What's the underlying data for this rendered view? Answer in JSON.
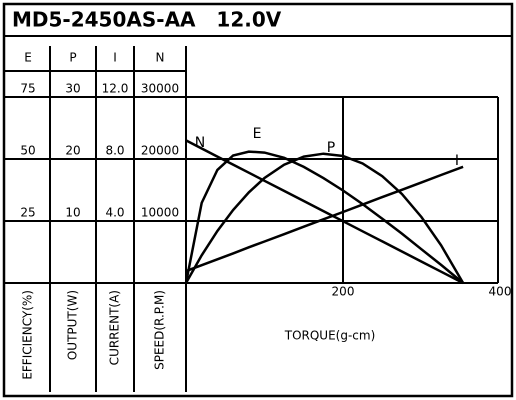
{
  "chart_data": {
    "type": "line",
    "title": "MD5-2450AS-AA   12.0V",
    "x": [
      0,
      20,
      40,
      60,
      80,
      100,
      125,
      150,
      175,
      200,
      225,
      250,
      275,
      300,
      325,
      353
    ],
    "xlim": [
      0,
      400
    ],
    "xticks": [
      200,
      400
    ],
    "xlabel": "TORQUE(g-cm)",
    "grid": true,
    "y_axes": [
      {
        "name": "E",
        "label": "EFFICIENCY(%)",
        "ylim": [
          0,
          75
        ],
        "yticks": [
          25,
          50,
          75
        ]
      },
      {
        "name": "P",
        "label": "OUTPUT(W)",
        "ylim": [
          0,
          30
        ],
        "yticks": [
          10,
          20,
          30
        ]
      },
      {
        "name": "I",
        "label": "CURRENT(A)",
        "ylim": [
          0,
          12
        ],
        "yticks": [
          {
            "value": 4,
            "label": "4.0"
          },
          {
            "value": 8,
            "label": "8.0"
          },
          {
            "value": 12,
            "label": "12.0"
          }
        ]
      },
      {
        "name": "N",
        "label": "SPEED(R.P.M)",
        "ylim": [
          0,
          30000
        ],
        "yticks": [
          10000,
          20000,
          30000
        ]
      }
    ],
    "series": [
      {
        "name": "N",
        "color": "#000000",
        "axis": 3,
        "values": [
          23000,
          21700,
          20390,
          19090,
          17790,
          16480,
          14860,
          13230,
          11600,
          9970,
          8340,
          6710,
          5080,
          3450,
          1820,
          0
        ]
      },
      {
        "name": "E",
        "color": "#000000",
        "axis": 0,
        "values": [
          0,
          32.3,
          45.6,
          51.4,
          53.0,
          52.6,
          50.5,
          46.8,
          42.3,
          37.3,
          31.8,
          25.9,
          19.9,
          13.6,
          7.3,
          0
        ]
      },
      {
        "name": "P",
        "color": "#000000",
        "axis": 1,
        "values": [
          0,
          4.46,
          8.38,
          11.77,
          14.62,
          16.93,
          19.08,
          20.39,
          20.85,
          20.48,
          19.28,
          17.23,
          14.35,
          10.63,
          6.08,
          0
        ]
      },
      {
        "name": "I",
        "color": "#000000",
        "axis": 2,
        "values": [
          0.77,
          1.15,
          1.53,
          1.91,
          2.3,
          2.68,
          3.15,
          3.63,
          4.11,
          4.58,
          5.06,
          5.54,
          6.01,
          6.49,
          6.97,
          7.5
        ]
      }
    ]
  }
}
